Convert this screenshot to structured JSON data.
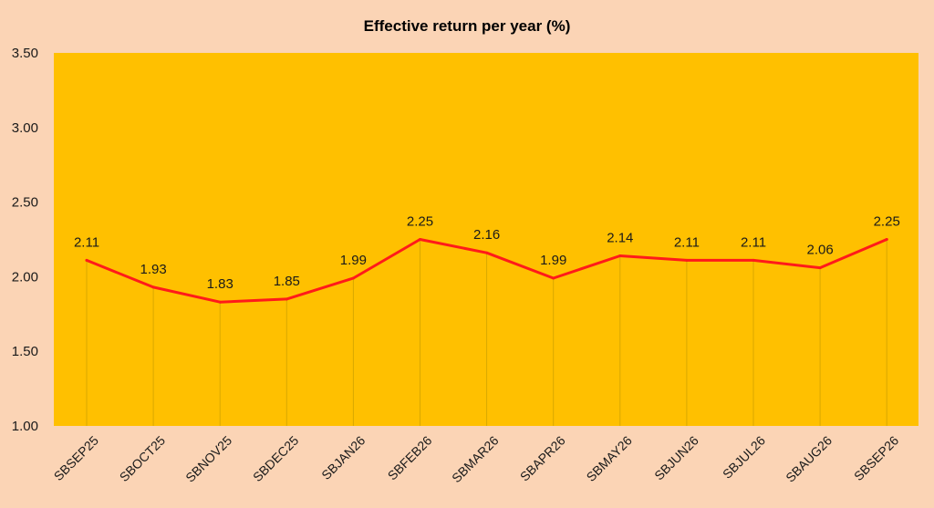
{
  "chart_data": {
    "type": "line",
    "title": "Effective return per year (%)",
    "xlabel": "",
    "ylabel": "",
    "categories": [
      "SBSEP25",
      "SBOCT25",
      "SBNOV25",
      "SBDEC25",
      "SBJAN26",
      "SBFEB26",
      "SBMAR26",
      "SBAPR26",
      "SBMAY26",
      "SBJUN26",
      "SBJUL26",
      "SBAUG26",
      "SBSEP26"
    ],
    "series": [
      {
        "values": [
          2.11,
          1.93,
          1.83,
          1.85,
          1.99,
          2.25,
          2.16,
          1.99,
          2.14,
          2.11,
          2.11,
          2.06,
          2.25
        ]
      }
    ],
    "data_labels": [
      "2.11",
      "1.93",
      "1.83",
      "1.85",
      "1.99",
      "2.25",
      "2.16",
      "1.99",
      "2.14",
      "2.11",
      "2.11",
      "2.06",
      "2.25"
    ],
    "ylim": [
      1.0,
      3.5
    ],
    "yticks": [
      "1.00",
      "1.50",
      "2.00",
      "2.50",
      "3.00",
      "3.50"
    ],
    "grid": "vertical drop lines",
    "legend": "none",
    "colors": {
      "page_background": "#fbd4b5",
      "plot_background": "#ffc000",
      "line": "#ff1a1a",
      "drop_lines": "#d9a800"
    }
  }
}
